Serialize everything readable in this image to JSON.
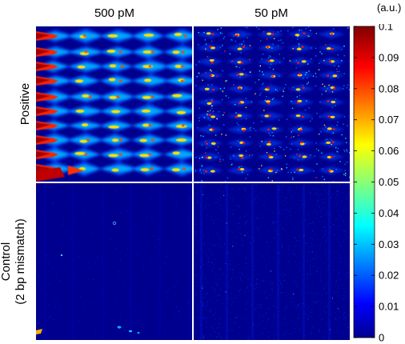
{
  "columns": [
    "500 pM",
    "50 pM"
  ],
  "rows": [
    {
      "label_lines": [
        "Positive"
      ]
    },
    {
      "label_lines": [
        "Control",
        "(2 bp mismatch)"
      ]
    }
  ],
  "colorbar": {
    "unit": "(a.u.)",
    "min": 0,
    "max": 0.1,
    "ticks": [
      "0",
      "0.01",
      "0.02",
      "0.03",
      "0.04",
      "0.05",
      "0.06",
      "0.07",
      "0.08",
      "0.09",
      "0.1"
    ],
    "colormap": "jet"
  },
  "colors": {
    "background_low": "#00008f",
    "grid_divider": "#ffffff"
  }
}
